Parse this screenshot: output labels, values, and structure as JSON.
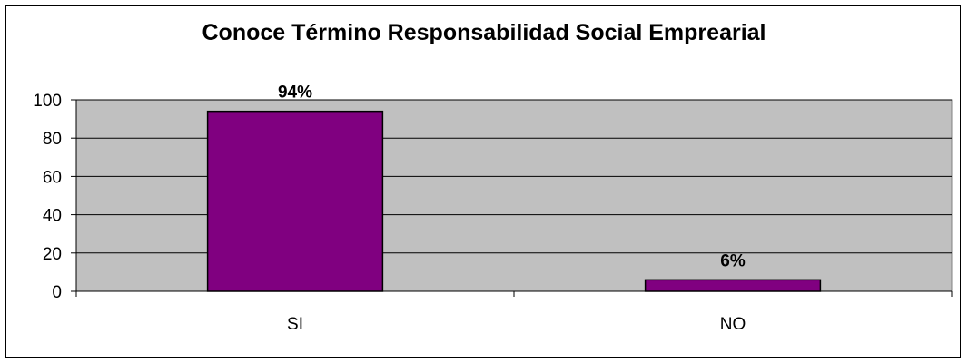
{
  "chart_data": {
    "type": "bar",
    "title": "Conoce Término Responsabilidad Social Emprearial",
    "categories": [
      "SI",
      "NO"
    ],
    "values": [
      94,
      6
    ],
    "data_labels": [
      "94%",
      "6%"
    ],
    "xlabel": "",
    "ylabel": "",
    "ylim": [
      0,
      100
    ],
    "yticks": [
      0,
      20,
      40,
      60,
      80,
      100
    ],
    "grid": true,
    "legend": "none",
    "colors": {
      "bar": "#800080",
      "plot_background": "#c0c0c0",
      "gridline": "#000000"
    }
  }
}
